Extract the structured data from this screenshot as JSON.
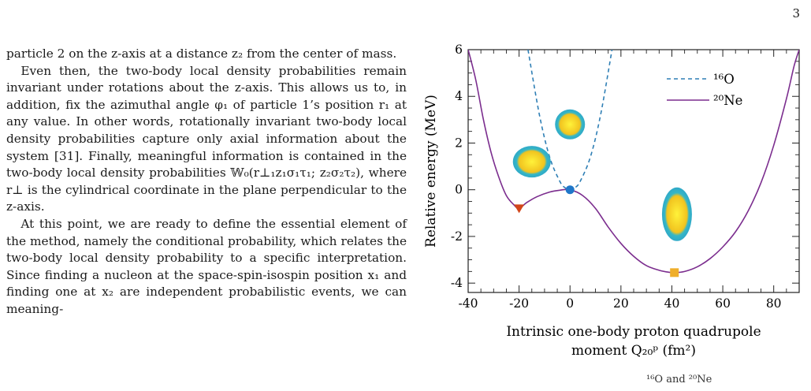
{
  "page": {
    "number": "3"
  },
  "text": {
    "p1": "particle 2 on the z-axis at a distance z₂ from the center of mass.",
    "p2": "Even then, the two-body local density probabilities remain invariant under rotations about the z-axis. This allows us to, in addition, fix the azimuthal angle φ₁ of particle 1’s position r₁ at any value. In other words, rotationally invariant two-body local density probabilities capture only axial information about the system [31]. Finally, meaningful information is contained in the two-body local density probabilities 𝕎₀(r⊥₁z₁σ₁τ₁; z₂σ₂τ₂), where r⊥ is the cylindrical coordinate in the plane perpendicular to the z-axis.",
    "p3": "At this point, we are ready to define the essential element of the method, namely the conditional probability, which relates the two-body local density probability to a specific interpretation. Since finding a nucleon at the space-spin-isospin position x₁ and finding one at x₂ are independent probabilistic events, we can meaning-"
  },
  "figure": {
    "ylabel": "Relative energy (MeV)",
    "xlabel_line1": "Intrinsic one-body proton quadrupole",
    "xlabel_line2": "moment Q₂₀ᵖ (fm²)",
    "caption_fragment": "¹⁶O and ²⁰Ne"
  },
  "chart_data": {
    "type": "line",
    "xlabel": "Intrinsic one-body proton quadrupole moment Q₂₀ᵖ (fm²)",
    "ylabel": "Relative energy (MeV)",
    "xlim": [
      -40,
      90
    ],
    "ylim": [
      -4.4,
      6
    ],
    "xticks": [
      -40,
      -20,
      0,
      20,
      40,
      60,
      80
    ],
    "yticks": [
      -4,
      -2,
      0,
      2,
      4,
      6
    ],
    "legend_position": "top-right",
    "series": [
      {
        "name": "¹⁶O",
        "style": "dashed",
        "color": "#2f7fb5",
        "x": [
          -16.5,
          -12,
          -8,
          -4,
          -2,
          0,
          2,
          4,
          8,
          12,
          16.5
        ],
        "y": [
          6.0,
          3.2,
          1.4,
          0.36,
          0.09,
          0.0,
          0.09,
          0.36,
          1.4,
          3.2,
          6.0
        ]
      },
      {
        "name": "²⁰Ne",
        "style": "solid",
        "color": "#7b2d8e",
        "x": [
          -40,
          -37,
          -34,
          -31,
          -28,
          -25,
          -22,
          -20,
          -17,
          -13,
          -8,
          -4,
          0,
          5,
          10,
          15,
          20,
          25,
          30,
          35,
          38,
          41,
          45,
          50,
          55,
          60,
          65,
          70,
          75,
          80,
          85,
          88,
          90
        ],
        "y": [
          6.0,
          4.7,
          3.0,
          1.6,
          0.55,
          -0.25,
          -0.65,
          -0.8,
          -0.55,
          -0.3,
          -0.1,
          -0.02,
          0.0,
          -0.25,
          -0.8,
          -1.6,
          -2.3,
          -2.85,
          -3.25,
          -3.45,
          -3.52,
          -3.55,
          -3.5,
          -3.3,
          -2.95,
          -2.45,
          -1.8,
          -0.9,
          0.3,
          1.9,
          3.9,
          5.3,
          6.0
        ]
      }
    ],
    "markers": [
      {
        "shape": "down-triangle",
        "color": "#d2461b",
        "x": -20,
        "y": -0.8
      },
      {
        "shape": "circle",
        "color": "#1f77c9",
        "x": 0,
        "y": 0.0
      },
      {
        "shape": "square",
        "color": "#efae2a",
        "x": 41,
        "y": -3.55
      }
    ],
    "density_insets": [
      {
        "shape": "oblate",
        "x": -15,
        "y": 1.2
      },
      {
        "shape": "sphere",
        "x": 0,
        "y": 2.8
      },
      {
        "shape": "prolate",
        "x": 42,
        "y": -1.05
      }
    ]
  }
}
